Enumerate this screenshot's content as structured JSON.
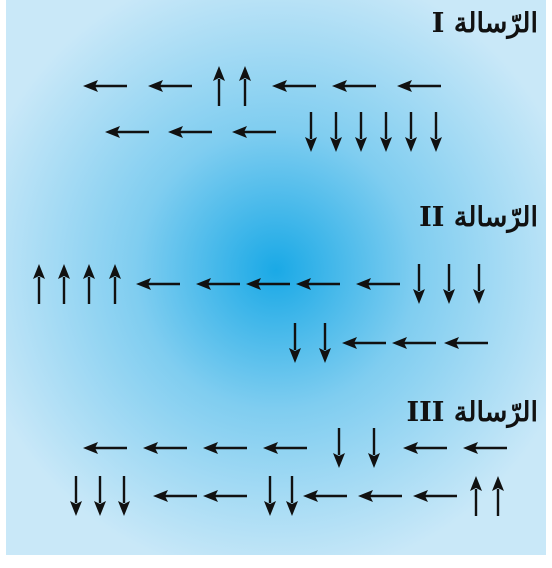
{
  "background": {
    "edge_color": "#c9e8f8",
    "center_color": "#1aa9e6"
  },
  "arrow_color": "#111111",
  "messages": [
    {
      "title": "الرّسالة I",
      "rows": [
        [
          "left",
          "left",
          "up",
          "up",
          "left",
          "left",
          "left"
        ],
        [
          "left",
          "left",
          "left",
          "down",
          "down",
          "down",
          "down",
          "down",
          "down"
        ]
      ]
    },
    {
      "title": "الرّسالة II",
      "rows": [
        [
          "up",
          "up",
          "up",
          "up",
          "left",
          "left",
          "left",
          "left",
          "left",
          "down",
          "down",
          "down"
        ],
        [
          "down",
          "down",
          "left",
          "left",
          "left"
        ]
      ]
    },
    {
      "title": "الرّسالة III",
      "rows": [
        [
          "left",
          "left",
          "left",
          "left",
          "down",
          "down",
          "left",
          "left"
        ],
        [
          "down",
          "down",
          "down",
          "left",
          "left",
          "down",
          "down",
          "left",
          "left",
          "left",
          "up",
          "up"
        ]
      ]
    }
  ]
}
